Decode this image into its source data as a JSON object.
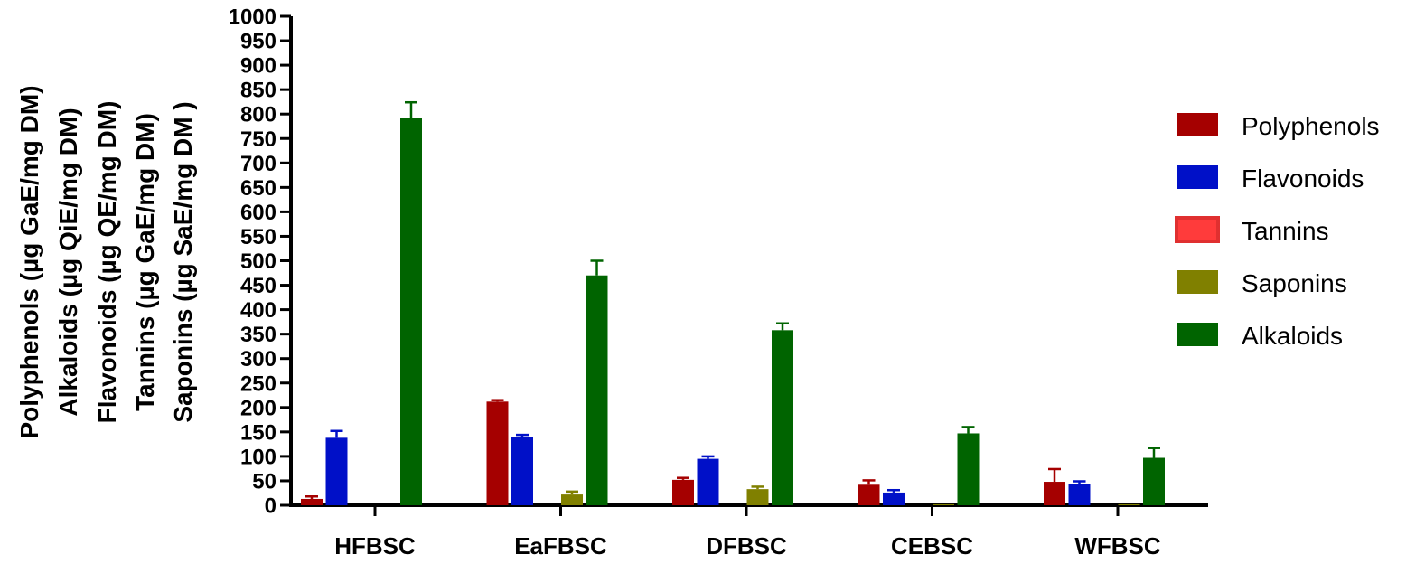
{
  "chart_data": {
    "type": "bar",
    "categories": [
      "HFBSC",
      "EaFBSC",
      "DFBSC",
      "CEBSC",
      "WFBSC"
    ],
    "ylabel_lines": [
      "Polyphenols (µg GaE/mg DM)",
      "Alkaloids (µg QiE/mg DM)",
      "Flavonoids (µg QE/mg DM)",
      "Tannins (µg GaE/mg DM)",
      "Saponins (µg SaE/mg DM )"
    ],
    "ylim": [
      0,
      1000
    ],
    "yticks": [
      0,
      50,
      100,
      150,
      200,
      250,
      300,
      350,
      400,
      450,
      500,
      550,
      600,
      650,
      700,
      750,
      800,
      850,
      900,
      950,
      1000
    ],
    "grid": false,
    "legend_position": "right",
    "series": [
      {
        "name": "Polyphenols",
        "color": "#a50000",
        "values": [
          13,
          212,
          52,
          42,
          48
        ],
        "errors": [
          5,
          3,
          4,
          9,
          26
        ]
      },
      {
        "name": "Flavonoids",
        "color": "#0010c8",
        "values": [
          138,
          140,
          95,
          26,
          44
        ],
        "errors": [
          14,
          4,
          5,
          5,
          5
        ]
      },
      {
        "name": "Tannins",
        "color": "#ff3b3b",
        "border": "#e03030",
        "values": [
          0,
          0,
          0,
          0,
          0
        ],
        "errors": [
          0,
          0,
          0,
          0,
          0
        ]
      },
      {
        "name": "Saponins",
        "color": "#808000",
        "values": [
          0,
          22,
          33,
          2,
          2
        ],
        "errors": [
          0,
          6,
          5,
          0,
          0
        ]
      },
      {
        "name": "Alkaloids",
        "color": "#006400",
        "values": [
          792,
          470,
          358,
          147,
          97
        ],
        "errors": [
          32,
          30,
          14,
          13,
          20
        ]
      }
    ]
  }
}
